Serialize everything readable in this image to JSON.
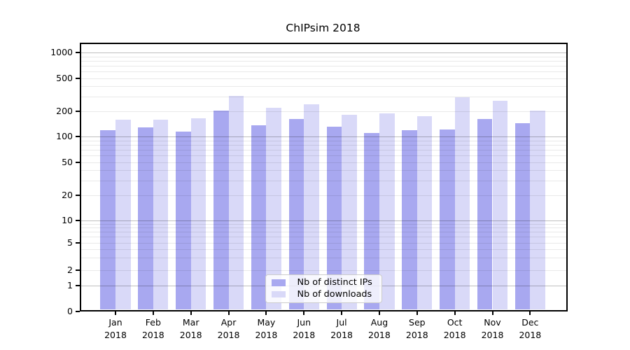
{
  "chart_data": {
    "type": "bar",
    "title": "ChIPsim 2018",
    "categories": [
      "Jan 2018",
      "Feb 2018",
      "Mar 2018",
      "Apr 2018",
      "May 2018",
      "Jun 2018",
      "Jul 2018",
      "Aug 2018",
      "Sep 2018",
      "Oct 2018",
      "Nov 2018",
      "Dec 2018"
    ],
    "series": [
      {
        "name": "Nb of distinct IPs",
        "color": "#a8a8f0",
        "values": [
          120,
          129,
          115,
          204,
          138,
          162,
          133,
          110,
          119,
          123,
          162,
          144
        ]
      },
      {
        "name": "Nb of downloads",
        "color": "#d9d9f8",
        "values": [
          160,
          161,
          166,
          307,
          221,
          242,
          184,
          189,
          177,
          297,
          268,
          206
        ]
      }
    ],
    "yticks": [
      0,
      1,
      2,
      5,
      10,
      20,
      50,
      100,
      200,
      500,
      1000
    ],
    "ylim": [
      0,
      1000
    ],
    "yscale": "log-like (symlog with 0 baseline)",
    "xlabel": "",
    "ylabel": "",
    "grid": true,
    "legend_position": "bottom-center",
    "colors": {
      "major_grid": "#bfbfbf",
      "minor_grid": "#ebebeb",
      "axis": "#000000",
      "background": "#ffffff"
    }
  }
}
